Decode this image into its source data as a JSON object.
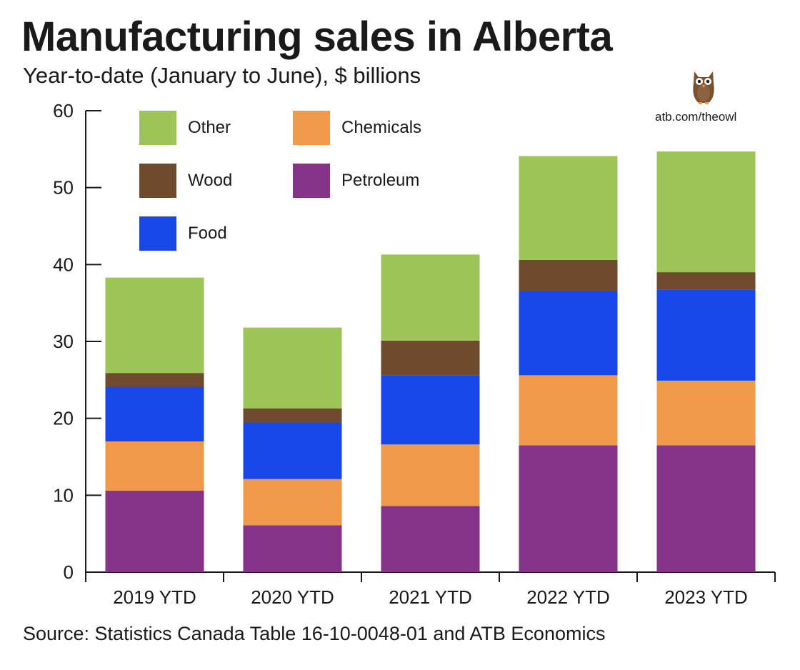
{
  "chart_data": {
    "type": "bar",
    "stacked": true,
    "title": "Manufacturing sales in Alberta",
    "subtitle": "Year-to-date (January to June), $ billions",
    "xlabel": "",
    "ylabel": "",
    "ylim": [
      0,
      60
    ],
    "yticks": [
      0,
      10,
      20,
      30,
      40,
      50,
      60
    ],
    "categories": [
      "2019 YTD",
      "2020 YTD",
      "2021 YTD",
      "2022 YTD",
      "2023 YTD"
    ],
    "series": [
      {
        "name": "Petroleum",
        "color": "#873289",
        "values": [
          10.6,
          6.1,
          8.6,
          16.5,
          16.5
        ]
      },
      {
        "name": "Chemicals",
        "color": "#F0994A",
        "values": [
          6.4,
          6.0,
          8.0,
          9.1,
          8.4
        ]
      },
      {
        "name": "Food",
        "color": "#1747E8",
        "values": [
          7.1,
          7.4,
          9.0,
          10.9,
          11.8
        ]
      },
      {
        "name": "Wood",
        "color": "#6E4B2D",
        "values": [
          1.8,
          1.8,
          4.5,
          4.1,
          2.3
        ]
      },
      {
        "name": "Other",
        "color": "#9CC457",
        "values": [
          12.4,
          10.5,
          11.2,
          13.5,
          15.7
        ]
      }
    ],
    "legend": {
      "placement": "top-left",
      "order": [
        "Other",
        "Chemicals",
        "Wood",
        "Petroleum",
        "Food"
      ]
    },
    "grid": false,
    "source": "Source: Statistics Canada Table 16-10-0048-01 and ATB Economics"
  },
  "branding": {
    "url": "atb.com/theowl",
    "logo": "owl"
  }
}
